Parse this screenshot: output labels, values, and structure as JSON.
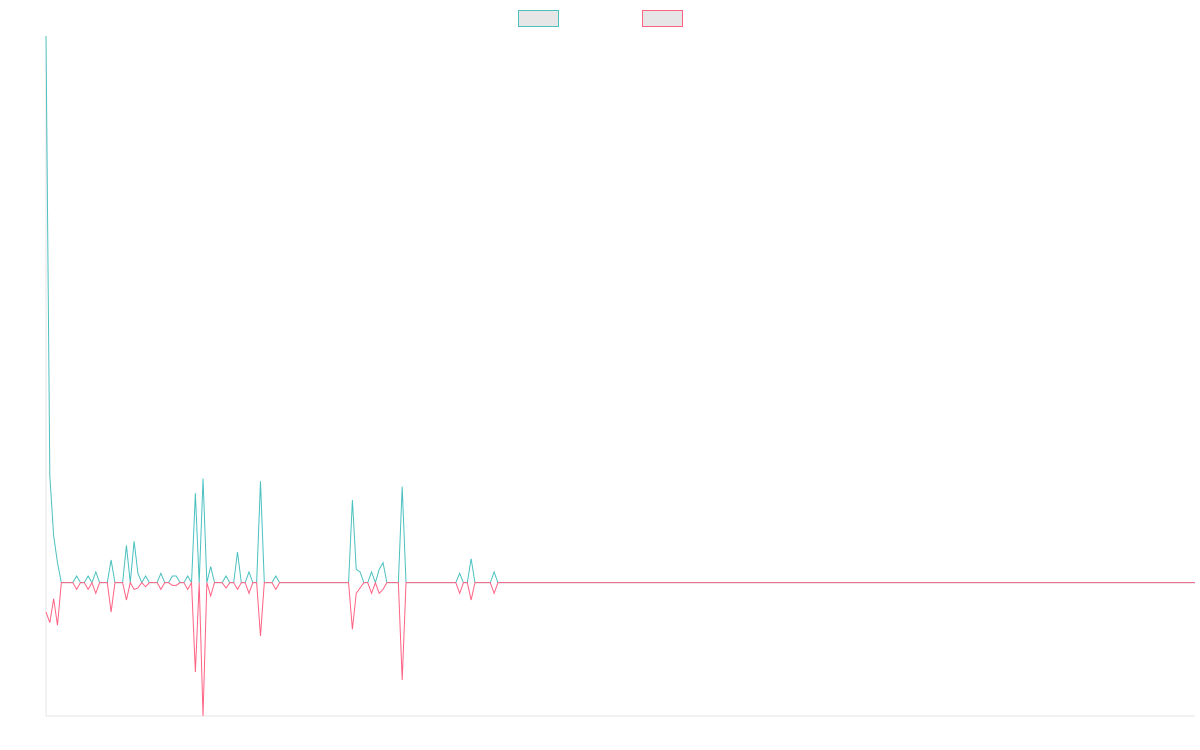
{
  "chart_data": {
    "type": "line",
    "title": "",
    "xlabel": "",
    "ylabel": "",
    "legend": {
      "position": "top-center",
      "show_labels": false
    },
    "grid": false,
    "x": [
      0,
      1,
      2,
      3,
      4,
      5,
      6,
      7,
      8,
      9,
      10,
      11,
      12,
      13,
      14,
      15,
      16,
      17,
      18,
      19,
      20,
      21,
      22,
      23,
      24,
      25,
      26,
      27,
      28,
      29,
      30,
      31,
      32,
      33,
      34,
      35,
      36,
      37,
      38,
      39,
      40,
      41,
      42,
      43,
      44,
      45,
      46,
      47,
      48,
      49,
      50,
      51,
      52,
      53,
      54,
      55,
      56,
      57,
      58,
      59,
      60,
      61,
      62,
      63,
      64,
      65,
      66,
      67,
      68,
      69,
      70,
      71,
      72,
      73,
      74,
      75,
      76,
      77,
      78,
      79,
      80,
      81,
      82,
      83,
      84,
      85,
      86,
      87,
      88,
      89,
      90,
      91,
      92,
      93,
      94,
      95,
      96,
      97,
      98,
      99,
      100,
      101,
      102,
      103,
      104,
      105,
      106,
      107,
      108,
      109,
      110,
      111,
      112,
      113,
      114,
      115,
      116,
      117,
      118,
      119,
      120,
      121,
      122,
      123,
      124,
      125,
      126,
      127,
      128,
      129,
      130,
      131,
      132,
      133,
      134,
      135,
      136,
      137,
      138,
      139,
      140,
      141,
      142,
      143,
      144,
      145,
      146,
      147,
      148,
      149,
      150,
      151,
      152,
      153,
      154,
      155,
      156,
      157,
      158,
      159,
      160,
      161,
      162,
      163,
      164,
      165,
      166,
      167,
      168,
      169,
      170,
      171,
      172,
      173,
      174,
      175,
      176,
      177,
      178,
      179,
      180,
      181,
      182,
      183,
      184,
      185,
      186,
      187,
      188,
      189,
      190,
      191,
      192,
      193,
      194,
      195,
      196,
      197,
      198,
      199,
      200,
      201,
      202,
      203,
      204,
      205,
      206,
      207,
      208,
      209,
      210,
      211,
      212,
      213,
      214,
      215,
      216,
      217,
      218,
      219,
      220,
      221,
      222,
      223,
      224,
      225,
      226,
      227,
      228,
      229,
      230,
      231,
      232,
      233,
      234,
      235,
      236,
      237,
      238,
      239,
      240,
      241,
      242,
      243,
      244,
      245,
      246,
      247,
      248,
      249,
      250,
      251,
      252,
      253,
      254,
      255,
      256,
      257,
      258,
      259,
      260,
      261,
      262,
      263,
      264,
      265,
      266,
      267,
      268,
      269,
      270,
      271,
      272,
      273,
      274,
      275,
      276,
      277,
      278,
      279,
      280,
      281,
      282,
      283,
      284,
      285,
      286,
      287,
      288,
      289,
      290,
      291,
      292,
      293,
      294,
      295,
      296,
      297,
      298,
      299,
      300
    ],
    "series": [
      {
        "color": "#4bc0c0",
        "values": [
          410,
          80,
          35,
          15,
          0,
          0,
          0,
          0,
          5,
          0,
          0,
          5,
          0,
          8,
          0,
          0,
          0,
          17,
          0,
          0,
          0,
          28,
          0,
          31,
          7,
          0,
          5,
          0,
          0,
          0,
          7,
          0,
          0,
          5,
          5,
          0,
          0,
          5,
          0,
          67,
          0,
          78,
          0,
          12,
          0,
          0,
          0,
          5,
          0,
          0,
          23,
          0,
          0,
          8,
          0,
          0,
          76,
          0,
          0,
          0,
          5,
          0,
          0,
          0,
          0,
          0,
          0,
          0,
          0,
          0,
          0,
          0,
          0,
          0,
          0,
          0,
          0,
          0,
          0,
          0,
          62,
          10,
          8,
          0,
          0,
          8,
          0,
          10,
          15,
          0,
          0,
          0,
          0,
          72,
          0,
          0,
          0,
          0,
          0,
          0,
          0,
          0,
          0,
          0,
          0,
          0,
          0,
          0,
          7,
          0,
          0,
          18,
          0,
          0,
          0,
          0,
          0,
          8,
          0,
          0,
          0,
          0,
          0,
          0,
          0,
          0,
          0,
          0,
          0,
          0,
          0,
          0,
          0,
          0,
          0,
          0,
          0,
          0,
          0,
          0,
          0,
          0,
          0,
          0,
          0,
          0,
          0,
          0,
          0,
          0,
          0,
          0,
          0,
          0,
          0,
          0,
          0,
          0,
          0,
          0,
          0,
          0,
          0,
          0,
          0,
          0,
          0,
          0,
          0,
          0,
          0,
          0,
          0,
          0,
          0,
          0,
          0,
          0,
          0,
          0,
          0,
          0,
          0,
          0,
          0,
          0,
          0,
          0,
          0,
          0,
          0,
          0,
          0,
          0,
          0,
          0,
          0,
          0,
          0,
          0,
          0,
          0,
          0,
          0,
          0,
          0,
          0,
          0,
          0,
          0,
          0,
          0,
          0,
          0,
          0,
          0,
          0,
          0,
          0,
          0,
          0,
          0,
          0,
          0,
          0,
          0,
          0,
          0,
          0,
          0,
          0,
          0,
          0,
          0,
          0,
          0,
          0,
          0,
          0,
          0,
          0,
          0,
          0,
          0,
          0,
          0,
          0,
          0,
          0,
          0,
          0,
          0,
          0,
          0,
          0,
          0,
          0,
          0,
          0,
          0,
          0,
          0,
          0,
          0,
          0,
          0,
          0,
          0,
          0,
          0,
          0,
          0,
          0,
          0,
          0,
          0,
          0,
          0,
          0,
          0,
          0,
          0,
          0,
          0,
          0,
          0,
          0,
          0,
          0,
          0,
          0,
          0,
          0,
          0,
          0,
          0,
          0,
          0,
          0,
          0,
          0
        ]
      },
      {
        "color": "#ff6384",
        "values": [
          -22,
          -30,
          -12,
          -32,
          0,
          0,
          0,
          0,
          -5,
          0,
          0,
          -5,
          0,
          -8,
          0,
          0,
          0,
          -22,
          0,
          0,
          0,
          -13,
          0,
          -5,
          -4,
          0,
          -3,
          0,
          0,
          0,
          -5,
          0,
          0,
          -2,
          -2,
          0,
          0,
          -5,
          0,
          -67,
          0,
          -100,
          0,
          -10,
          0,
          0,
          0,
          -4,
          0,
          0,
          -5,
          0,
          0,
          -8,
          0,
          0,
          -40,
          0,
          0,
          0,
          -5,
          0,
          0,
          0,
          0,
          0,
          0,
          0,
          0,
          0,
          0,
          0,
          0,
          0,
          0,
          0,
          0,
          0,
          0,
          0,
          -35,
          -8,
          -4,
          0,
          0,
          -8,
          0,
          -8,
          -5,
          0,
          0,
          0,
          0,
          -73,
          0,
          0,
          0,
          0,
          0,
          0,
          0,
          0,
          0,
          0,
          0,
          0,
          0,
          0,
          -8,
          0,
          0,
          -13,
          0,
          0,
          0,
          0,
          0,
          -8,
          0,
          0,
          0,
          0,
          0,
          0,
          0,
          0,
          0,
          0,
          0,
          0,
          0,
          0,
          0,
          0,
          0,
          0,
          0,
          0,
          0,
          0,
          0,
          0,
          0,
          0,
          0,
          0,
          0,
          0,
          0,
          0,
          0,
          0,
          0,
          0,
          0,
          0,
          0,
          0,
          0,
          0,
          0,
          0,
          0,
          0,
          0,
          0,
          0,
          0,
          0,
          0,
          0,
          0,
          0,
          0,
          0,
          0,
          0,
          0,
          0,
          0,
          0,
          0,
          0,
          0,
          0,
          0,
          0,
          0,
          0,
          0,
          0,
          0,
          0,
          0,
          0,
          0,
          0,
          0,
          0,
          0,
          0,
          0,
          0,
          0,
          0,
          0,
          0,
          0,
          0,
          0,
          0,
          0,
          0,
          0,
          0,
          0,
          0,
          0,
          0,
          0,
          0,
          0,
          0,
          0,
          0,
          0,
          0,
          0,
          0,
          0,
          0,
          0,
          0,
          0,
          0,
          0,
          0,
          0,
          0,
          0,
          0,
          0,
          0,
          0,
          0,
          0,
          0,
          0,
          0,
          0,
          0,
          0,
          0,
          0,
          0,
          0,
          0,
          0,
          0,
          0,
          0,
          0,
          0,
          0,
          0,
          0,
          0,
          0,
          0,
          0,
          0,
          0,
          0,
          0,
          0,
          0,
          0,
          0,
          0,
          0,
          0,
          0,
          0,
          0,
          0,
          0,
          0,
          0,
          0,
          0,
          0,
          0,
          0,
          0,
          0,
          0,
          0,
          0,
          0,
          0,
          0
        ]
      }
    ],
    "xlim": [
      0,
      300
    ],
    "ylim": [
      -100,
      410
    ]
  }
}
